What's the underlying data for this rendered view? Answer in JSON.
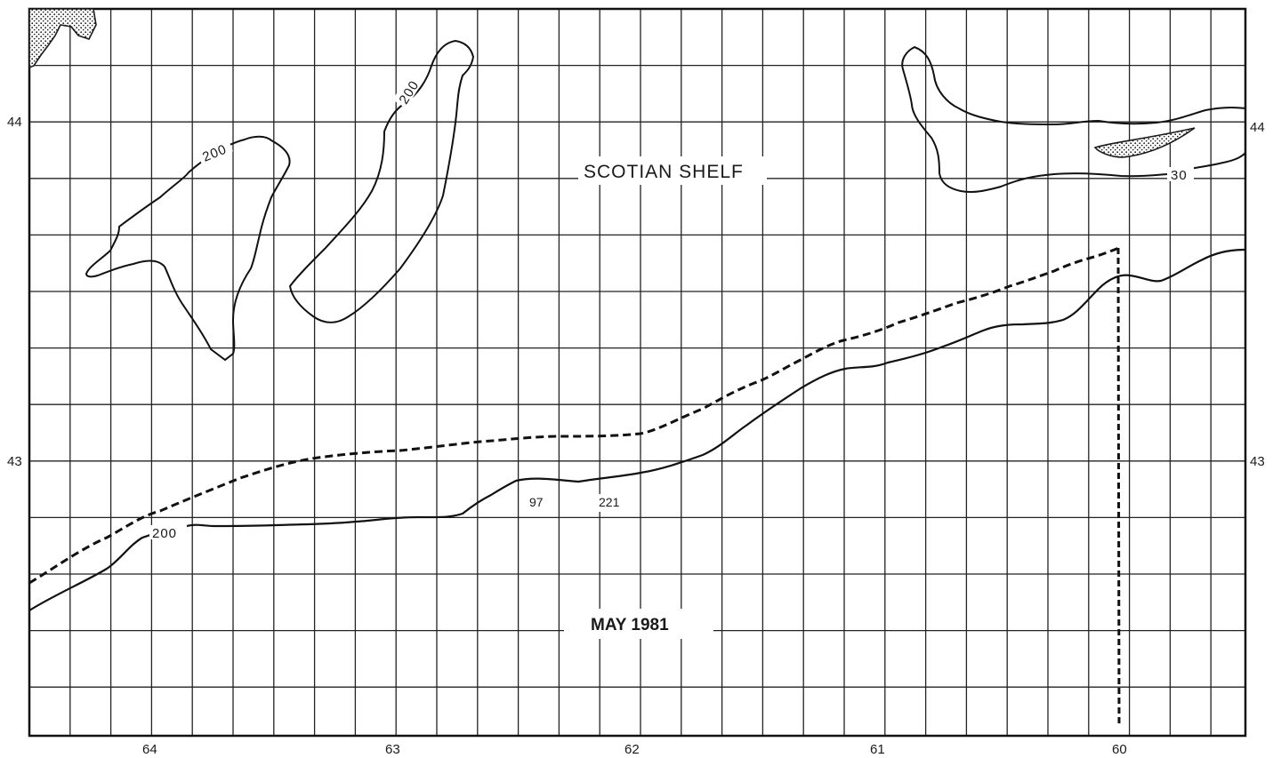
{
  "map": {
    "region_label": "SCOTIAN SHELF",
    "date_label": "MAY 1981",
    "contour_labels": [
      "200",
      "200",
      "200",
      "30"
    ],
    "data_labels": [
      "97",
      "221"
    ],
    "longitude_ticks": [
      "64",
      "63",
      "62",
      "61",
      "60"
    ],
    "latitude_ticks_left": [
      "44",
      "43"
    ],
    "latitude_ticks_right": [
      "44",
      "43"
    ]
  },
  "colors": {
    "ink": "#1a1a1a",
    "paper": "#ffffff",
    "grid": "#222222"
  }
}
